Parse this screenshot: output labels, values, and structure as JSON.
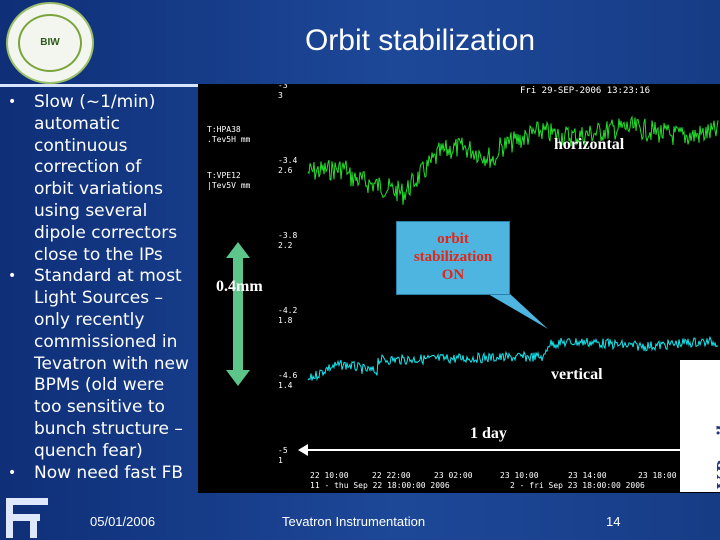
{
  "slide": {
    "title": "Orbit stabilization",
    "logo_text": "BIW",
    "bullets": [
      {
        "lines": [
          "Slow (~1/min)",
          "automatic",
          "continuous",
          "correction of",
          "orbit variations",
          "using several",
          "dipole correctors",
          "close to the IPs"
        ]
      },
      {
        "lines": [
          "Standard at most",
          "Light Sources –",
          "only recently",
          "commissioned in",
          "Tevatron with new",
          "BPMs (old were",
          "too sensitive to",
          "bunch structure –",
          "quench fear)"
        ]
      },
      {
        "lines": [
          "Now need fast FB"
        ]
      }
    ],
    "footer": {
      "date": "05/01/2006",
      "center": "Tevatron Instrumentation",
      "page": "14"
    },
    "author": "V.Ranjbar",
    "colors": {
      "background": "#1d4898",
      "horizontal_trace": "#22e02a",
      "vertical_trace": "#16e6ee",
      "callout_fill": "#4eb5e0",
      "callout_text": "#e52515",
      "scale_arrow": "#5ec58a"
    }
  },
  "plot": {
    "timestamp": "Fri 29-SEP-2006 13:23:16",
    "channels": [
      {
        "name": "T:HPA38",
        "desc": ".Tev5H mm"
      },
      {
        "name": "T:VPE12",
        "desc": "|Tev5V mm"
      }
    ],
    "y_ticks": [
      [
        "-3",
        "3"
      ],
      [
        "-3.4",
        "2.6"
      ],
      [
        "-3.8",
        "2.2"
      ],
      [
        "-4.2",
        "1.8"
      ],
      [
        "-4.6",
        "1.4"
      ],
      [
        "-5",
        "1"
      ]
    ],
    "x_ticks": [
      "22 10:00",
      "22 22:00",
      "23 02:00",
      "23 10:00",
      "23 14:00",
      "23 18:00"
    ],
    "x_range_left": "11 - thu Sep 22 18:00:00 2006",
    "x_range_right": "2 - fri Sep 23 18:00:00 2006",
    "labels": {
      "horizontal": "horizontal",
      "vertical": "vertical",
      "scale": "0.4mm",
      "duration": "1 day",
      "callout": [
        "orbit",
        "stabilization",
        "ON"
      ]
    }
  }
}
